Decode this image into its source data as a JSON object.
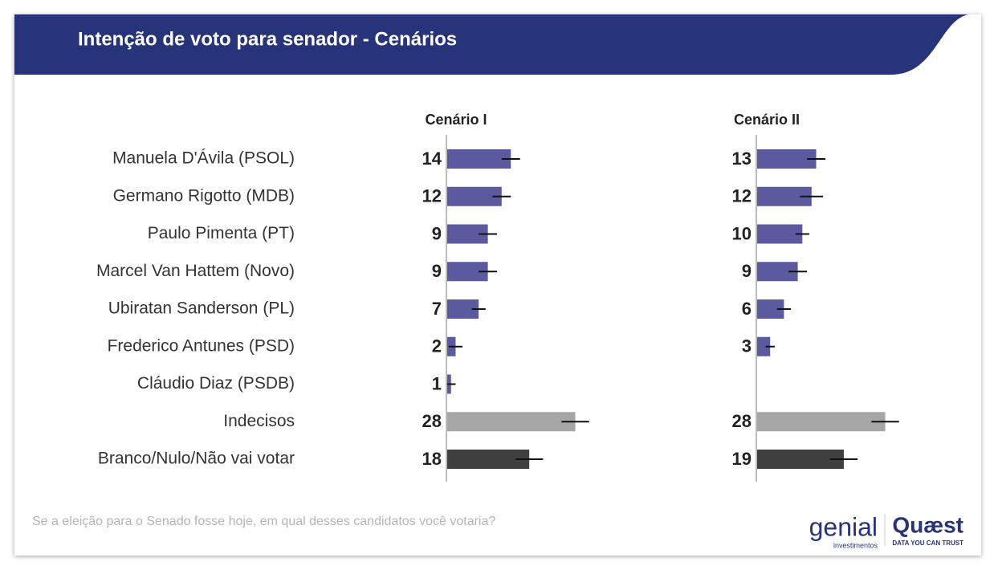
{
  "chart_data": {
    "type": "bar",
    "orientation": "horizontal",
    "title": "Intenção de voto para senador - Cenários",
    "note": "Se a eleição para o Senado fosse hoje, em qual desses candidatos você votaria?",
    "categories": [
      "Manuela D'Ávila (PSOL)",
      "Germano Rigotto (MDB)",
      "Paulo Pimenta (PT)",
      "Marcel Van Hattem (Novo)",
      "Ubiratan Sanderson (PL)",
      "Frederico Antunes (PSD)",
      "Cláudio Diaz (PSDB)",
      "Indecisos",
      "Branco/Nulo/Não vai votar"
    ],
    "colors": [
      "#5c5a9e",
      "#5c5a9e",
      "#5c5a9e",
      "#5c5a9e",
      "#5c5a9e",
      "#5c5a9e",
      "#5c5a9e",
      "#a6a6a6",
      "#404040"
    ],
    "xlim": [
      0,
      30
    ],
    "series": [
      {
        "name": "Cenário I",
        "values": [
          14,
          12,
          9,
          9,
          7,
          2,
          1,
          28,
          18
        ],
        "errors": [
          2,
          2,
          2,
          2,
          1.5,
          1.5,
          1,
          3,
          3
        ]
      },
      {
        "name": "Cenário II",
        "values": [
          13,
          12,
          10,
          9,
          6,
          3,
          null,
          28,
          19
        ],
        "errors": [
          2,
          2.5,
          1.5,
          2,
          1.5,
          1,
          null,
          3,
          3
        ]
      }
    ]
  },
  "logos": {
    "genial": "genial",
    "genial_sub": "investimentos",
    "quaest": "Quæst",
    "quaest_sub": "DATA YOU CAN TRUST"
  }
}
